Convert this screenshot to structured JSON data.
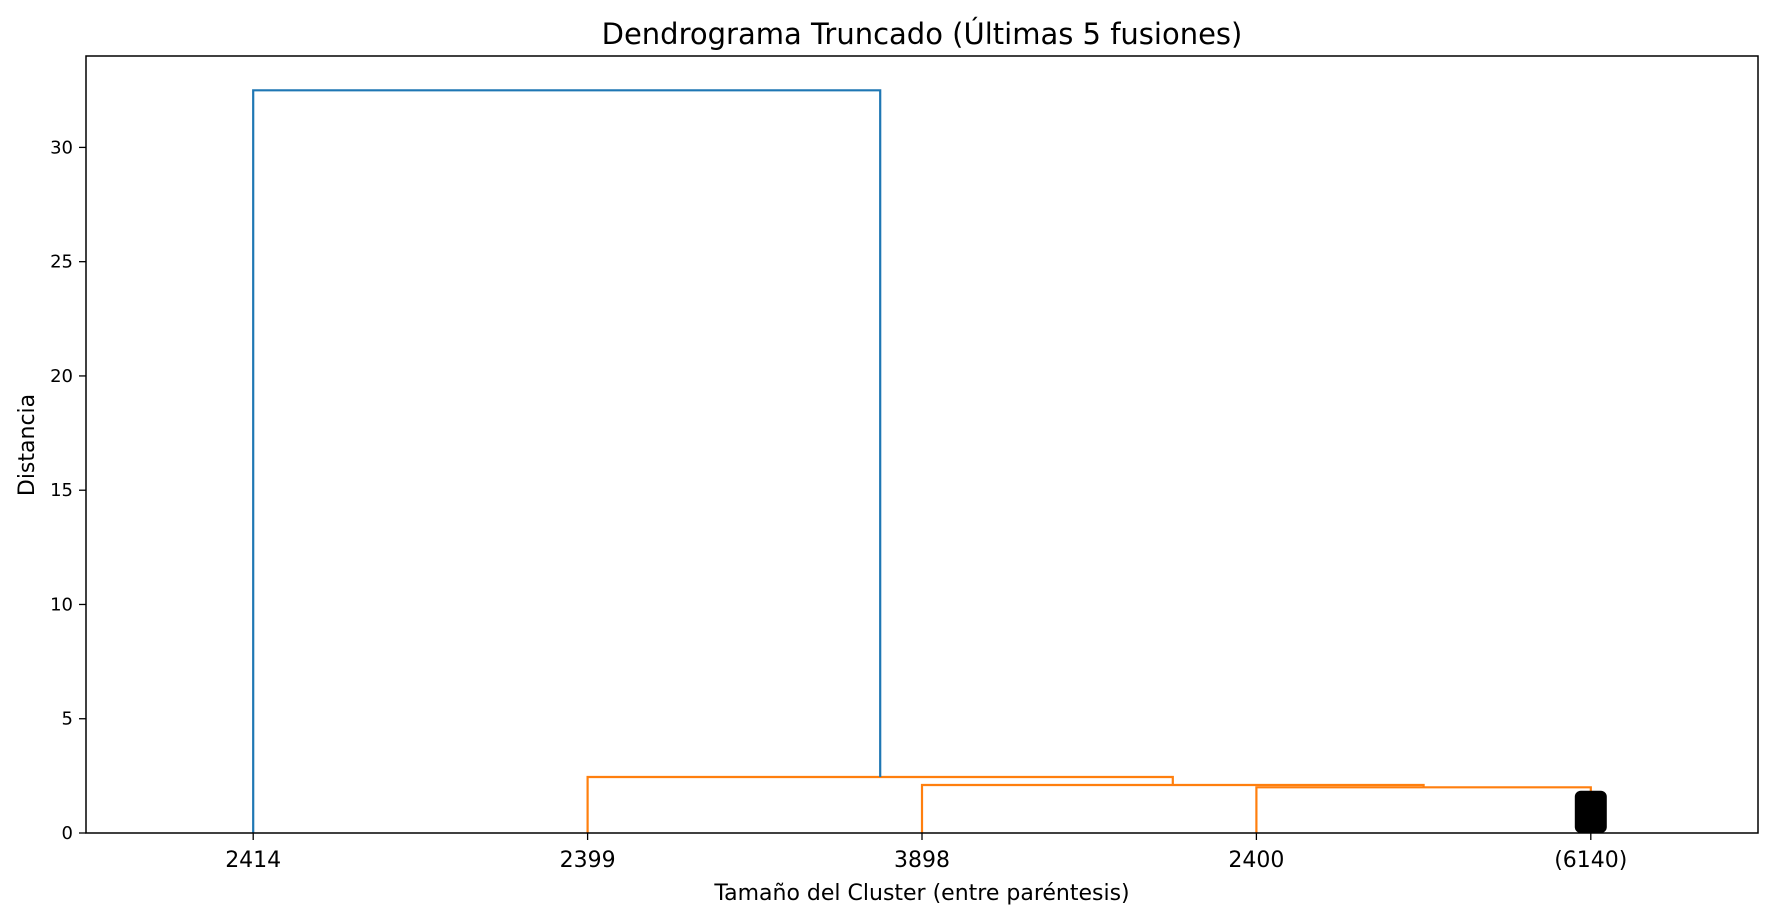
{
  "chart_data": {
    "type": "dendrogram",
    "title": "Dendrograma Truncado (Últimas 5 fusiones)",
    "xlabel": "Tamaño del Cluster (entre paréntesis)",
    "ylabel": "Distancia",
    "ylim": [
      0,
      34
    ],
    "yticks": [
      0,
      5,
      10,
      15,
      20,
      25,
      30
    ],
    "leaves": [
      "2414",
      "2399",
      "3898",
      "2400",
      "(6140)"
    ],
    "merges": [
      {
        "left_x": 4,
        "right_x": 5,
        "distance": 2.0,
        "left_base": 0,
        "right_base": 0,
        "color": "#ff7f0e"
      },
      {
        "left_x": 3,
        "right_x": 4.5,
        "distance": 2.1,
        "left_base": 0,
        "right_base": 2.0,
        "color": "#ff7f0e"
      },
      {
        "left_x": 2,
        "right_x": 3.75,
        "distance": 2.45,
        "left_base": 0,
        "right_base": 2.1,
        "color": "#ff7f0e"
      },
      {
        "left_x": 1,
        "right_x": 2.875,
        "distance": 32.5,
        "left_base": 0,
        "right_base": 2.45,
        "color": "#1f77b4"
      }
    ],
    "grid": false,
    "legend": "none"
  }
}
